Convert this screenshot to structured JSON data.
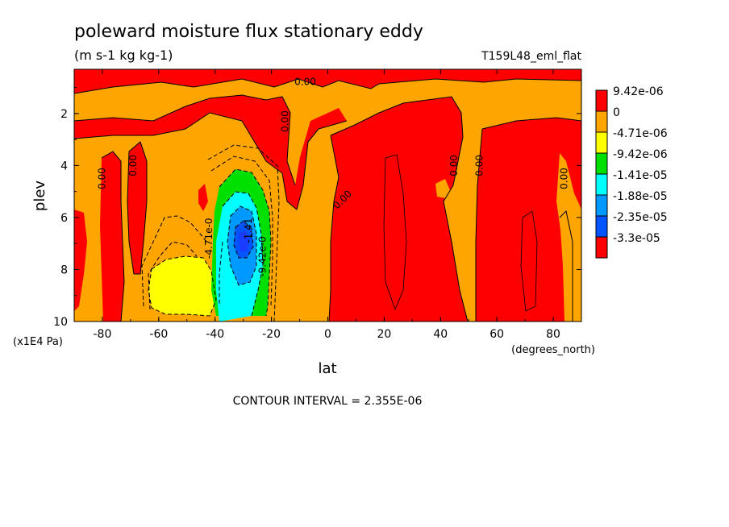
{
  "chart_data": {
    "type": "heatmap",
    "title": "poleward moisture flux stationary eddy",
    "units": "(m s-1 kg kg-1)",
    "experiment": "T159L48_eml_flat",
    "xlabel": "lat",
    "x_units": "(degrees_north)",
    "ylabel": "plev",
    "y_units": "(x1E4 Pa)",
    "xlim": [
      -90,
      90
    ],
    "ylim": [
      0.3,
      10
    ],
    "y_inverted": true,
    "x_ticks": [
      -80,
      -60,
      -40,
      -20,
      0,
      20,
      40,
      60,
      80
    ],
    "x_tick_labels": [
      "-80",
      "-60",
      "-40",
      "-20",
      "0",
      "20",
      "40",
      "60",
      "80"
    ],
    "y_ticks": [
      2,
      4,
      6,
      8,
      10
    ],
    "y_tick_labels": [
      "2",
      "4",
      "6",
      "8",
      "10"
    ],
    "contour_interval_text": "CONTOUR INTERVAL = 2.355E-06",
    "colorbar": {
      "labels": [
        "9.42e-06",
        "0",
        "-4.71e-06",
        "-9.42e-06",
        "-1.41e-05",
        "-1.88e-05",
        "-2.35e-05",
        "-3.3e-05"
      ],
      "colors": [
        "#ff0000",
        "#ffa500",
        "#ffff00",
        "#00e000",
        "#00ffff",
        "#0099ff",
        "#0055ff",
        "#ff0000"
      ]
    },
    "contour_labels": [
      {
        "text": "0.00",
        "lat": -79,
        "plev": 4.5,
        "rotate": -90
      },
      {
        "text": "0.00",
        "lat": -68,
        "plev": 4.0,
        "rotate": -90
      },
      {
        "text": "0.00",
        "lat": -8,
        "plev": 0.9,
        "rotate": 0
      },
      {
        "text": "0.00",
        "lat": -14,
        "plev": 2.3,
        "rotate": -90
      },
      {
        "text": "0.00",
        "lat": 6,
        "plev": 5.4,
        "rotate": -45
      },
      {
        "text": "0.00",
        "lat": 46,
        "plev": 4.0,
        "rotate": -90
      },
      {
        "text": "0.00",
        "lat": 55,
        "plev": 4.0,
        "rotate": -90
      },
      {
        "text": "0.00",
        "lat": 85,
        "plev": 4.5,
        "rotate": -90
      },
      {
        "text": "-4.71e-0",
        "lat": -41,
        "plev": 6.8,
        "rotate": -90
      },
      {
        "text": "-9.42e-0",
        "lat": -22,
        "plev": 7.5,
        "rotate": -90
      },
      {
        "text": "-1.41",
        "lat": -27,
        "plev": 6.5,
        "rotate": -90
      }
    ],
    "regions": [
      {
        "level": "-9.42e-06",
        "color": "#ffff00",
        "area": "lat -54 to -43, plev 7.6-9.8"
      },
      {
        "level": "-1.41e-05",
        "color": "#00e000",
        "area": "lat -38 to -22, plev 4.0-9.5"
      },
      {
        "level": "-1.88e-05",
        "color": "#00ffff",
        "area": "lat -37 to -24, plev 4.6-10"
      },
      {
        "level": "-2.35e-05",
        "color": "#0099ff",
        "area": "lat -35 to -25, plev 5.0-9.0"
      },
      {
        "level": "-3.3e-05",
        "color": "#0055ff",
        "area": "lat -32 to -27, plev 6.2-7.5 (minimum)"
      }
    ]
  }
}
